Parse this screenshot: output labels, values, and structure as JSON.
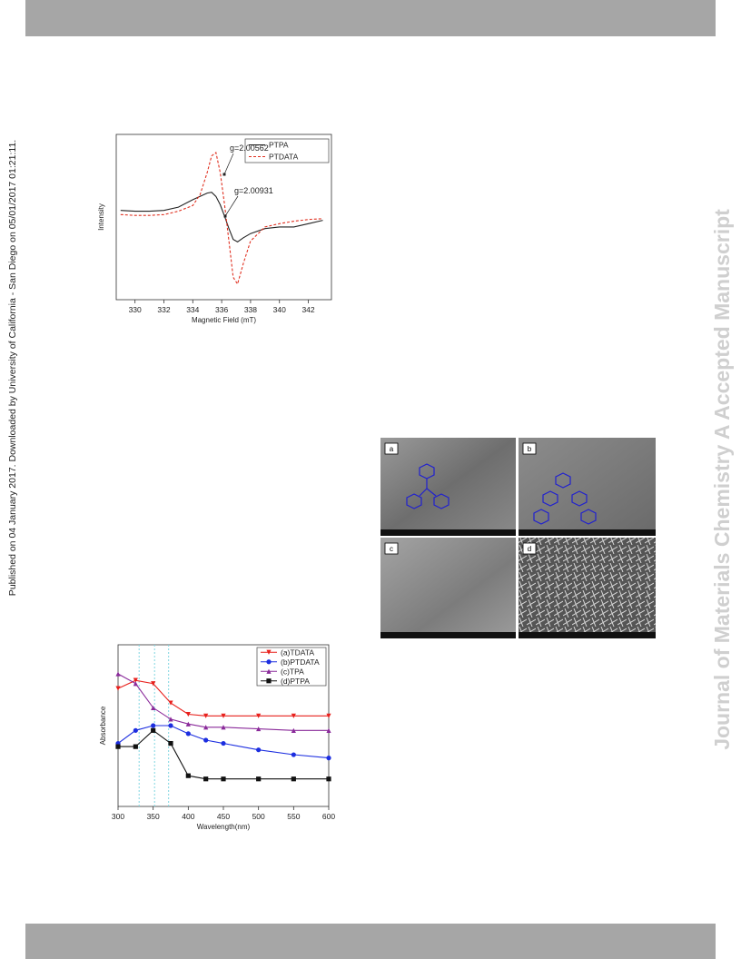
{
  "side_note": "Published on 04 January 2017. Downloaded by University of California - San Diego on 05/01/2017 01:21:11.",
  "watermark": "Journal of Materials Chemistry A Accepted Manuscript",
  "figure_panels": [
    "a",
    "b",
    "c",
    "d"
  ],
  "chart_data": [
    {
      "type": "line",
      "x_label": "Magnetic Field (mT)",
      "y_label": "Intensity",
      "annotations": [
        "g=2.00562",
        "g=2.00931"
      ],
      "x": [
        329,
        330,
        331,
        332,
        333,
        334,
        334.5,
        335,
        335.3,
        335.6,
        335.9,
        336.2,
        336.5,
        336.8,
        337.1,
        337.5,
        338,
        339,
        340,
        341,
        342,
        343
      ],
      "xlim": [
        328.7,
        343.6
      ],
      "xticks": [
        330,
        332,
        334,
        336,
        338,
        340,
        342
      ],
      "ylim": [
        -1,
        1
      ],
      "legend": "upper right",
      "series": [
        {
          "name": "PTPA",
          "color": "#222222",
          "line_style": "solid",
          "values": [
            0.08,
            0.07,
            0.07,
            0.08,
            0.12,
            0.21,
            0.25,
            0.29,
            0.3,
            0.25,
            0.15,
            0.01,
            -0.14,
            -0.27,
            -0.3,
            -0.25,
            -0.2,
            -0.14,
            -0.12,
            -0.12,
            -0.08,
            -0.04
          ]
        },
        {
          "name": "PTDATA",
          "color": "#e03020",
          "line_style": "dashed",
          "values": [
            0.03,
            0.02,
            0.02,
            0.03,
            0.07,
            0.14,
            0.27,
            0.54,
            0.74,
            0.78,
            0.54,
            0.15,
            -0.29,
            -0.73,
            -0.81,
            -0.56,
            -0.29,
            -0.12,
            -0.08,
            -0.05,
            -0.03,
            -0.02
          ]
        }
      ]
    },
    {
      "type": "line",
      "x_label": "Wavelength(nm)",
      "y_label": "Absorbance",
      "x": [
        300,
        325,
        350,
        375,
        400,
        425,
        450,
        500,
        550,
        600
      ],
      "xlim": [
        300,
        600
      ],
      "xticks": [
        300,
        350,
        400,
        450,
        500,
        550,
        600
      ],
      "ylim": [
        0,
        1
      ],
      "legend": "upper right",
      "series": [
        {
          "name": "(a)TDATA",
          "color": "#e8201c",
          "marker": "triangle-down",
          "values": [
            0.73,
            0.78,
            0.76,
            0.64,
            0.57,
            0.56,
            0.56,
            0.56,
            0.56,
            0.56
          ]
        },
        {
          "name": "(b)PTDATA",
          "color": "#1c2ee0",
          "marker": "circle",
          "values": [
            0.39,
            0.47,
            0.5,
            0.5,
            0.45,
            0.41,
            0.39,
            0.35,
            0.32,
            0.3
          ]
        },
        {
          "name": "(c)TPA",
          "color": "#8a2a9a",
          "marker": "triangle-up",
          "values": [
            0.82,
            0.76,
            0.61,
            0.54,
            0.51,
            0.49,
            0.49,
            0.48,
            0.47,
            0.47
          ]
        },
        {
          "name": "(d)PTPA",
          "color": "#111111",
          "marker": "square",
          "values": [
            0.37,
            0.37,
            0.47,
            0.39,
            0.19,
            0.17,
            0.17,
            0.17,
            0.17,
            0.17
          ]
        }
      ]
    }
  ]
}
